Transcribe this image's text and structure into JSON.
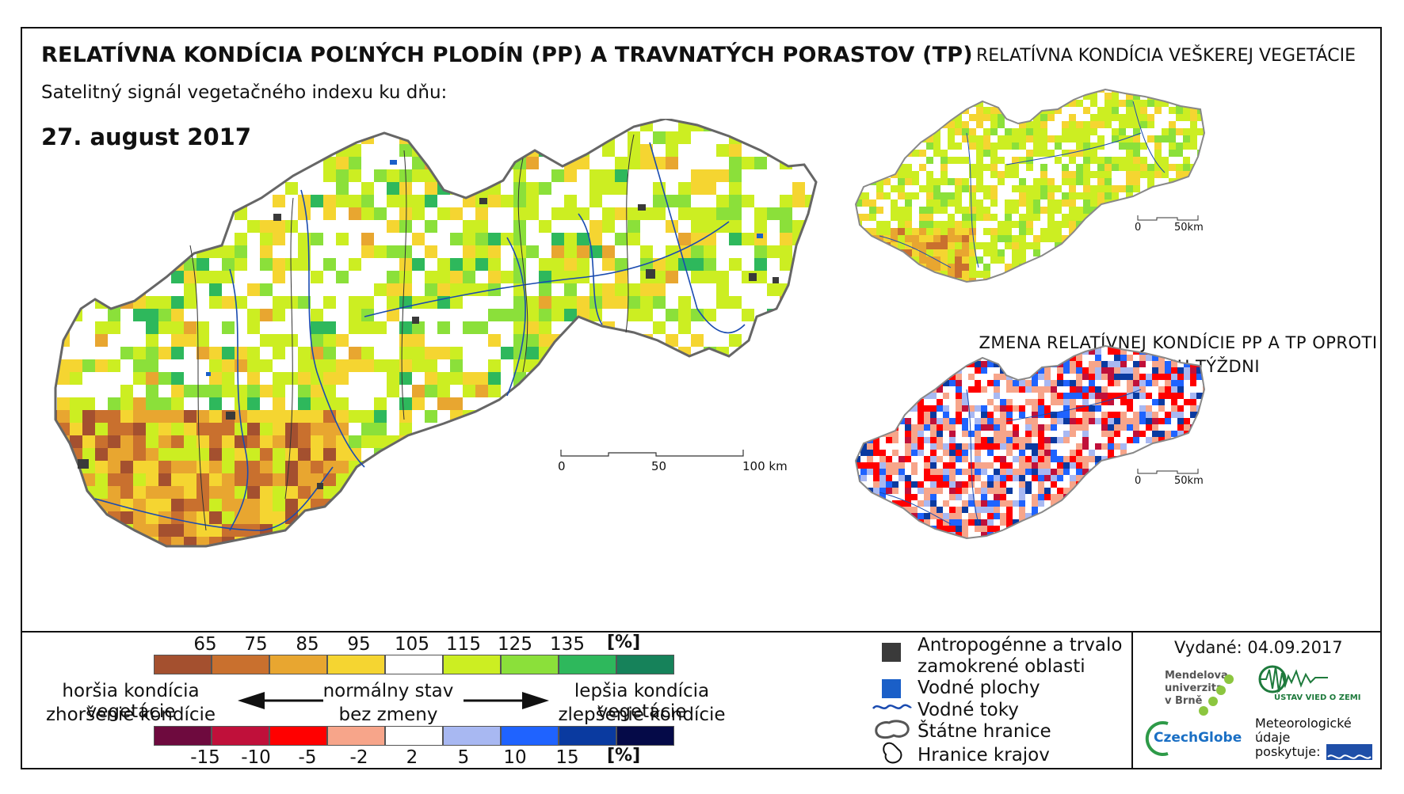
{
  "header": {
    "title": "RELATÍVNA KONDÍCIA POĽNÝCH PLODÍN (PP) A TRAVNATÝCH PORASTOV (TP)",
    "subtitle": "Satelitný signál vegetačného indexu ku dňu:",
    "date": "27. august 2017"
  },
  "side_maps": {
    "vegetation_title": "RELATÍVNA KONDÍCIA VEŠKEREJ VEGETÁCIE",
    "change_title": "ZMENA RELATÍVNEJ KONDÍCIE PP A TP OPROTI MINULÉMU TÝŽDNI",
    "scale": {
      "zero": "0",
      "end": "50km"
    }
  },
  "main_map": {
    "scale": {
      "zero": "0",
      "mid": "50",
      "end": "100 km"
    }
  },
  "legend": {
    "condition_ticks": [
      "65",
      "75",
      "85",
      "95",
      "105",
      "115",
      "125",
      "135"
    ],
    "condition_unit": "[%]",
    "condition_colors": [
      "#a4502f",
      "#c9702e",
      "#e8a630",
      "#f5d531",
      "#ffffff",
      "#ccee22",
      "#8be03a",
      "#2eb85c",
      "#16825a"
    ],
    "change_ticks": [
      "-15",
      "-10",
      "-5",
      "-2",
      "2",
      "5",
      "10",
      "15"
    ],
    "change_unit": "[%]",
    "change_colors": [
      "#6e0a3e",
      "#c0103a",
      "#ff0000",
      "#f7a58a",
      "#ffffff",
      "#a8b8f2",
      "#1f63ff",
      "#0a3aa0",
      "#050a48"
    ],
    "worse_1": "horšia kondícia vegetácie",
    "worse_2": "zhoršenie kondície",
    "normal_1": "normálny stav",
    "normal_2": "bez zmeny",
    "better_1": "lepšia kondícia vegetácie",
    "better_2": "zlepšenie kondície"
  },
  "map_legend": {
    "anthropogenic_1": "Antropogénne a trvalo",
    "anthropogenic_2": "zamokrené oblasti",
    "water_areas": "Vodné plochy",
    "water_streams": "Vodné toky",
    "state_borders": "Štátne hranice",
    "region_borders": "Hranice krajov",
    "colors": {
      "anthropogenic": "#3a3a3a",
      "water": "#1a5fc8",
      "stream": "#1a4bb0"
    }
  },
  "footer": {
    "issued": "Vydané: 04.09.2017",
    "mendel_1": "Mendelova",
    "mendel_2": "univerzita",
    "mendel_3": "v Brně",
    "czechglobe": "CzechGlobe",
    "uvoz": "ÚSTAV VIED O ZEMI",
    "meteo_1": "Meteorologické",
    "meteo_2": "údaje",
    "meteo_3": "poskytuje:",
    "shmu": "SHMÚ"
  }
}
